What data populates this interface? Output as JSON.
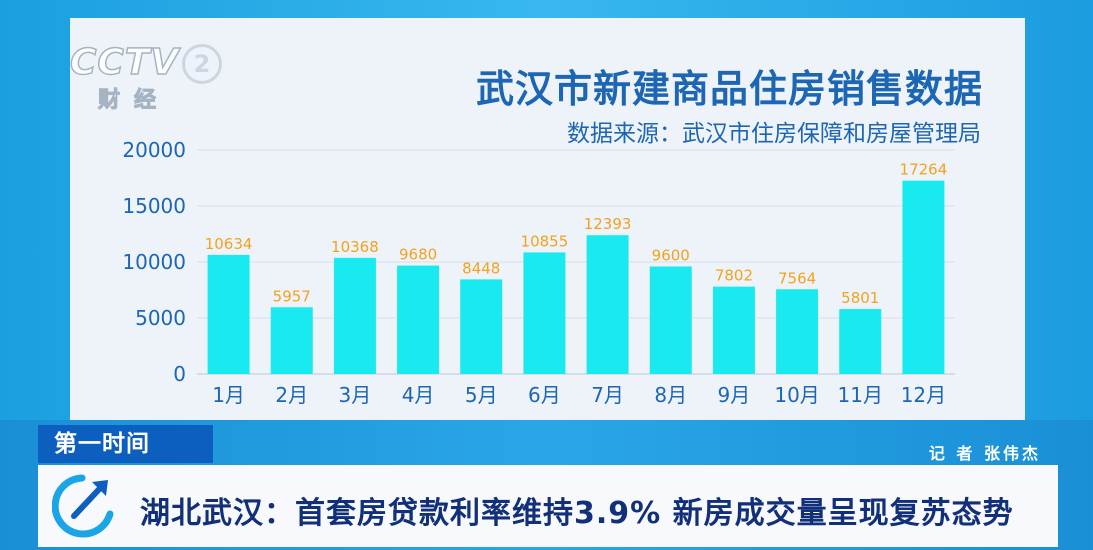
{
  "broadcast": {
    "logo_text": "CCTV",
    "channel_number": "2",
    "channel_name": "财经",
    "program_tag": "第一时间",
    "reporter": "记  者 张伟杰",
    "headline": "湖北武汉：首套房贷款利率维持3.9% 新房成交量呈现复苏态势"
  },
  "colors": {
    "bar": "#19eaf0",
    "value_label": "#f2a21d",
    "title": "#1d66b3",
    "axis_text": "#1d66b3"
  },
  "chart_data": {
    "type": "bar",
    "title": "武汉市新建商品住房销售数据",
    "subtitle": "数据来源：武汉市住房保障和房屋管理局",
    "categories": [
      "1月",
      "2月",
      "3月",
      "4月",
      "5月",
      "6月",
      "7月",
      "8月",
      "9月",
      "10月",
      "11月",
      "12月"
    ],
    "values": [
      10634,
      5957,
      10368,
      9680,
      8448,
      10855,
      12393,
      9600,
      7802,
      7564,
      5801,
      17264
    ],
    "ylim": [
      0,
      20000
    ],
    "yticks": [
      0,
      5000,
      10000,
      15000,
      20000
    ],
    "grid": true,
    "data_labels": true
  }
}
